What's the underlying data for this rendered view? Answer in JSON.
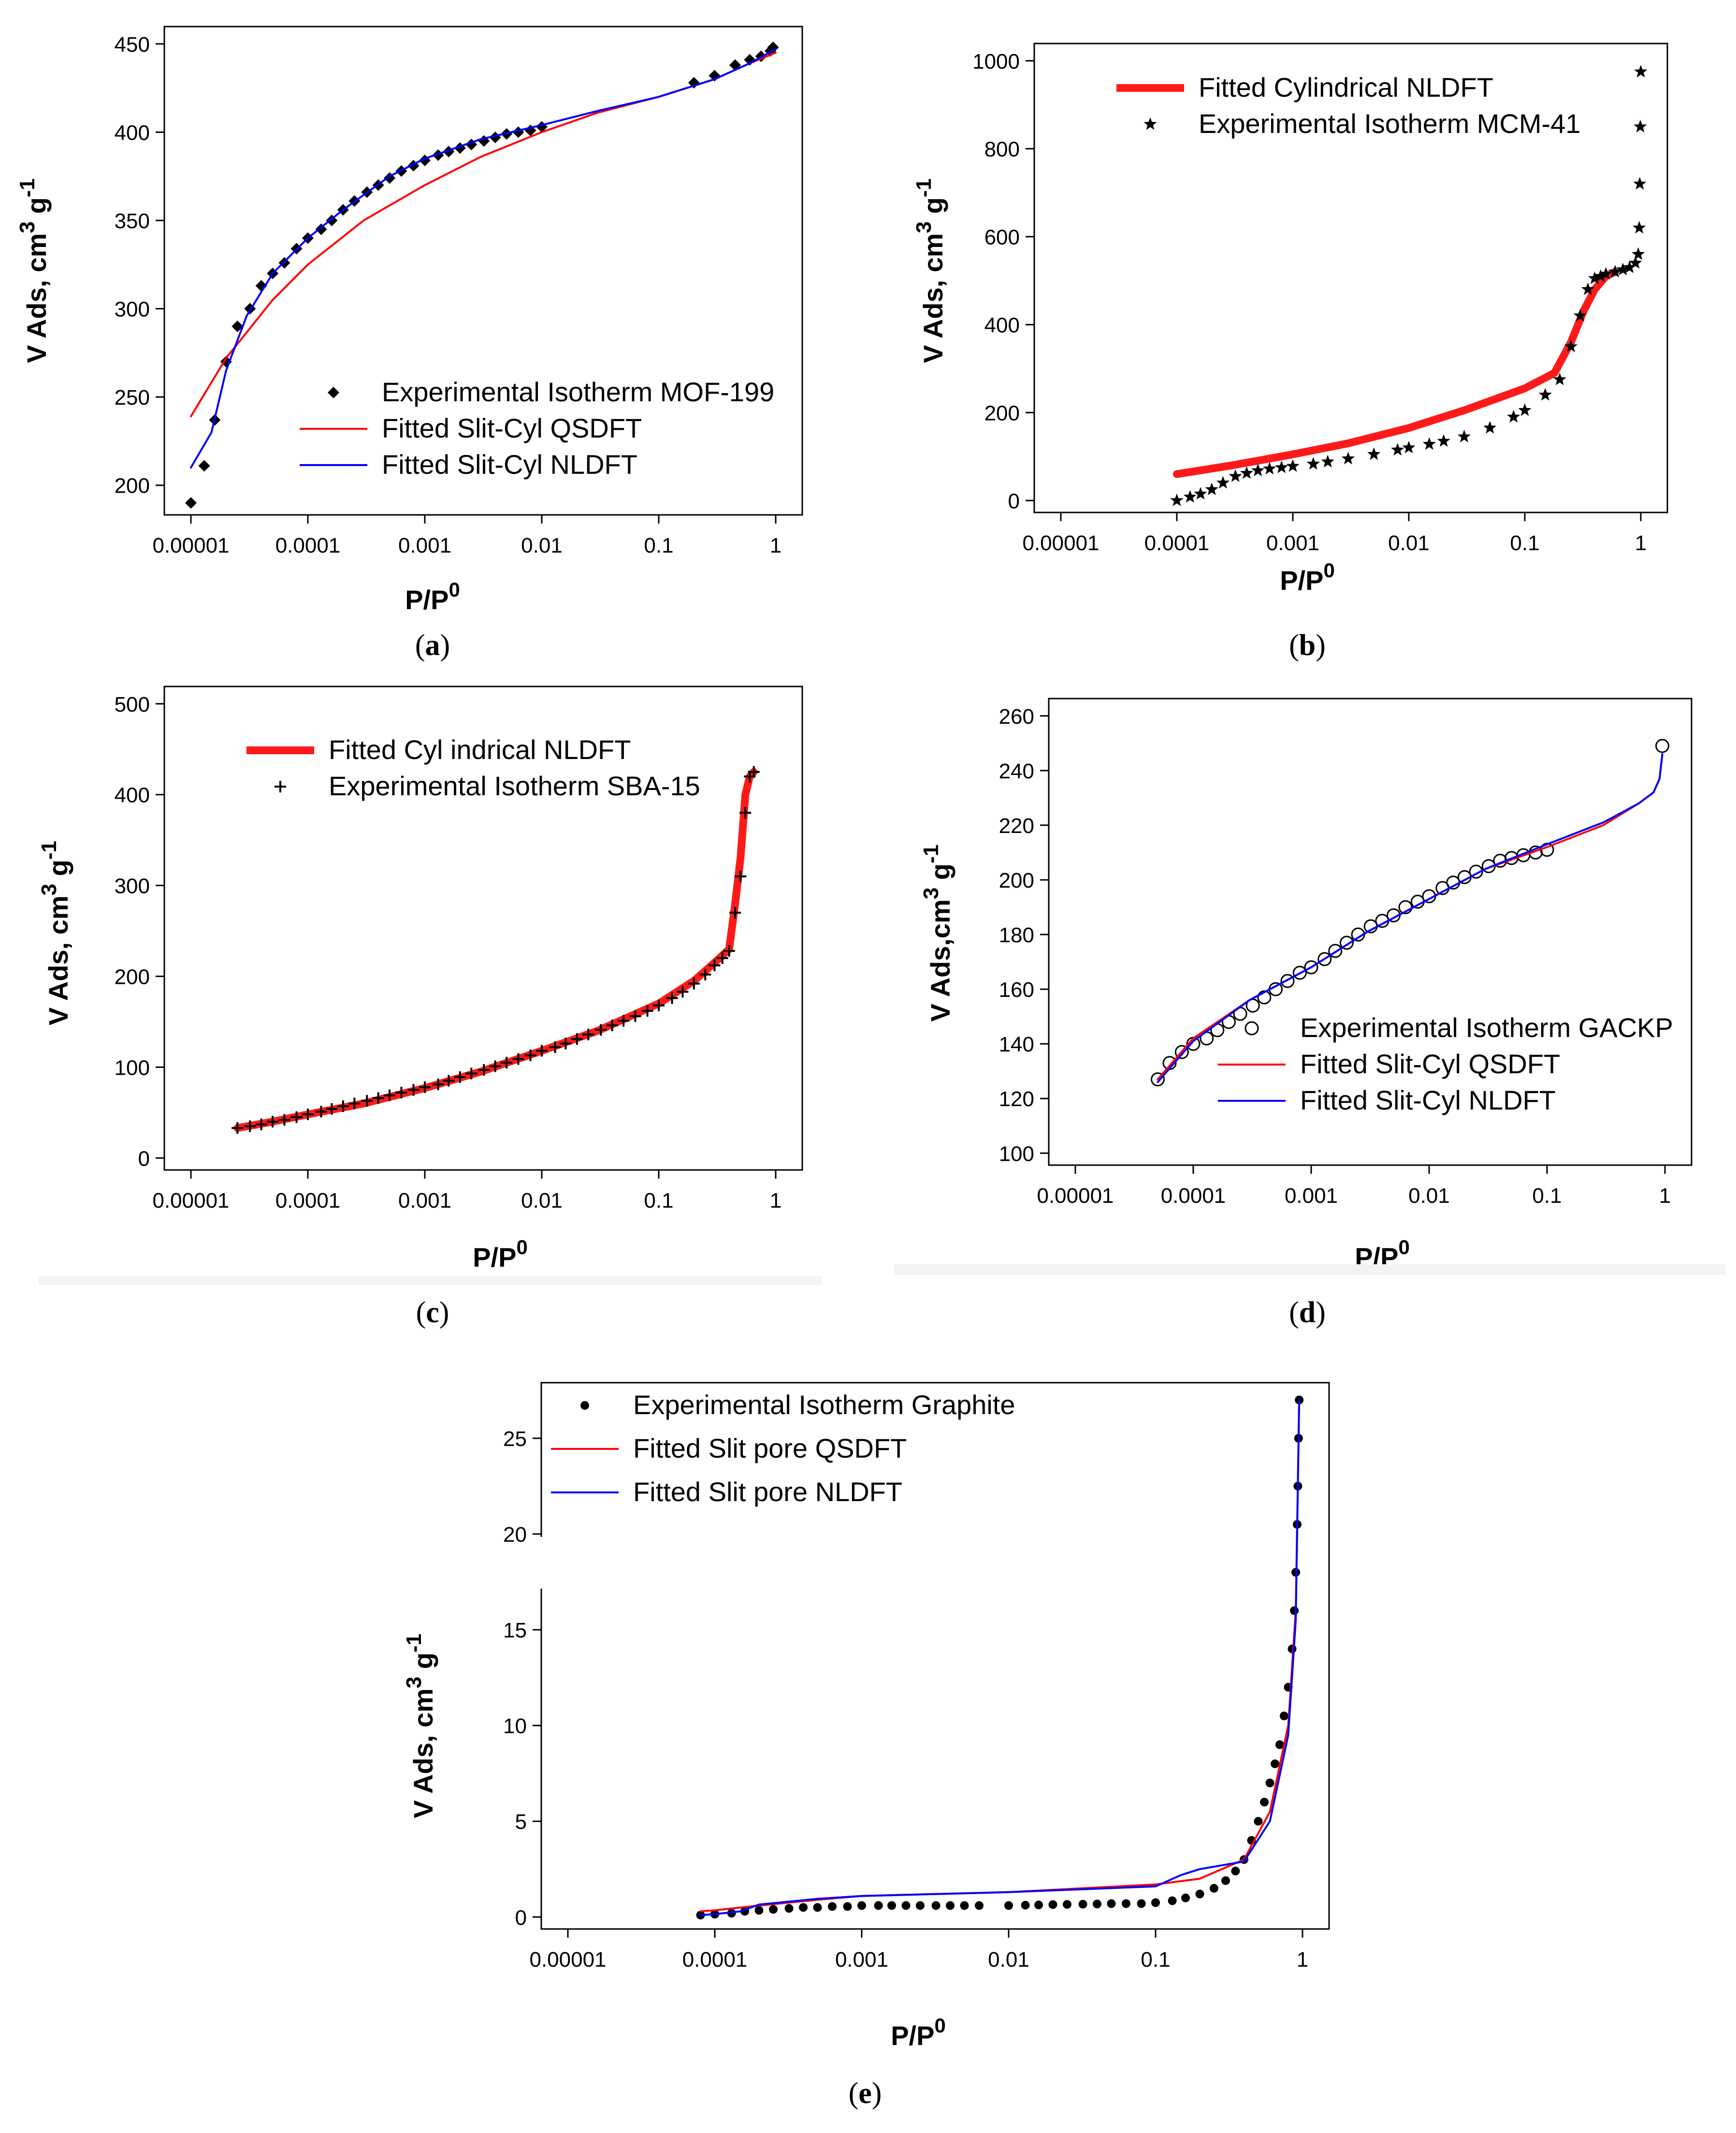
{
  "chart_data": [
    {
      "id": "a",
      "type": "scatter",
      "caption": "a",
      "xlabel": "P/P",
      "xlabel_sup": "0",
      "ylabel": "V Ads, cm",
      "ylabel_sup1": "3",
      "ylabel_mid": " g",
      "ylabel_sup2": "-1",
      "xscale": "log",
      "xlim": [
        1e-05,
        1
      ],
      "ylim": [
        190,
        450
      ],
      "xticks": [
        1e-05,
        0.0001,
        0.001,
        0.01,
        0.1,
        1
      ],
      "xtick_labels": [
        "0.00001",
        "0.0001",
        "0.001",
        "0.01",
        "0.1",
        "1"
      ],
      "yticks": [
        200,
        250,
        300,
        350,
        400,
        450
      ],
      "legend_position": "bottom-right",
      "series": [
        {
          "name": "Experimental Isotherm MOF-199",
          "kind": "marker",
          "marker": "diamond",
          "color": "#000000",
          "x": [
            1e-05,
            1.3e-05,
            1.6e-05,
            2e-05,
            2.5e-05,
            3.2e-05,
            4e-05,
            5e-05,
            6.3e-05,
            8e-05,
            0.0001,
            0.00013,
            0.00016,
            0.0002,
            0.00025,
            0.00032,
            0.0004,
            0.0005,
            0.00063,
            0.0008,
            0.001,
            0.0013,
            0.0016,
            0.002,
            0.0025,
            0.0032,
            0.004,
            0.005,
            0.0063,
            0.008,
            0.01,
            0.2,
            0.3,
            0.45,
            0.6,
            0.75,
            0.9,
            0.95
          ],
          "y": [
            190,
            211,
            237,
            270,
            290,
            300,
            313,
            320,
            326,
            334,
            340,
            345,
            350,
            356,
            361,
            366,
            370,
            374,
            378,
            381,
            384,
            387,
            389,
            391,
            393,
            395,
            397,
            399,
            400,
            401,
            403,
            428,
            432,
            438,
            441,
            443,
            446,
            448
          ]
        },
        {
          "name": "Fitted Slit-Cyl QSDFT",
          "kind": "line",
          "color": "#ff0000",
          "x": [
            1e-05,
            2e-05,
            5e-05,
            0.0001,
            0.0003,
            0.001,
            0.003,
            0.01,
            0.03,
            0.1,
            0.3,
            0.6,
            1
          ],
          "y": [
            239,
            272,
            305,
            325,
            350,
            370,
            386,
            400,
            411,
            420,
            430,
            439,
            445
          ]
        },
        {
          "name": "Fitted Slit-Cyl NLDFT",
          "kind": "line",
          "color": "#0000ff",
          "x": [
            1e-05,
            1.5e-05,
            2e-05,
            3e-05,
            5e-05,
            0.0001,
            0.0002,
            0.0005,
            0.001,
            0.003,
            0.01,
            0.03,
            0.1,
            0.3,
            0.6,
            1
          ],
          "y": [
            210,
            230,
            265,
            296,
            320,
            340,
            356,
            375,
            385,
            396,
            404,
            412,
            420,
            430,
            439,
            447
          ]
        }
      ]
    },
    {
      "id": "b",
      "type": "scatter",
      "caption": "b",
      "xlabel": "P/P",
      "xlabel_sup": "0",
      "ylabel": "V Ads, cm",
      "ylabel_sup1": "3",
      "ylabel_mid": " g",
      "ylabel_sup2": "-1",
      "xscale": "log",
      "xlim": [
        1e-05,
        1
      ],
      "ylim": [
        0,
        1000
      ],
      "xticks": [
        1e-05,
        0.0001,
        0.001,
        0.01,
        0.1,
        1
      ],
      "xtick_labels": [
        "0.00001",
        "0.0001",
        "0.001",
        "0.01",
        "0.1",
        "1"
      ],
      "yticks": [
        0,
        200,
        400,
        600,
        800,
        1000
      ],
      "legend_position": "top-left",
      "series": [
        {
          "name": "Fitted Cylindrical NLDFT",
          "kind": "line",
          "color": "#ff1a1a",
          "x": [
            0.0001,
            0.0003,
            0.001,
            0.003,
            0.01,
            0.03,
            0.1,
            0.18,
            0.25,
            0.32,
            0.4,
            0.5,
            0.6
          ],
          "y": [
            60,
            80,
            105,
            130,
            165,
            205,
            255,
            290,
            360,
            430,
            480,
            510,
            520
          ]
        },
        {
          "name": "Experimental Isotherm MCM-41",
          "kind": "marker",
          "marker": "star",
          "color": "#000000",
          "x": [
            0.0001,
            0.00013,
            0.00016,
            0.0002,
            0.00025,
            0.00032,
            0.0004,
            0.0005,
            0.00063,
            0.0008,
            0.001,
            0.0015,
            0.002,
            0.003,
            0.005,
            0.008,
            0.01,
            0.015,
            0.02,
            0.03,
            0.05,
            0.08,
            0.1,
            0.15,
            0.2,
            0.25,
            0.3,
            0.35,
            0.4,
            0.45,
            0.5,
            0.6,
            0.7,
            0.8,
            0.9,
            0.95,
            0.97,
            0.98,
            0.99,
            1.0
          ],
          "y": [
            0,
            8,
            15,
            25,
            40,
            55,
            62,
            68,
            72,
            75,
            78,
            83,
            88,
            95,
            105,
            115,
            120,
            128,
            135,
            145,
            165,
            190,
            205,
            240,
            275,
            350,
            420,
            480,
            505,
            510,
            515,
            520,
            525,
            530,
            540,
            560,
            620,
            720,
            850,
            975
          ]
        }
      ]
    },
    {
      "id": "c",
      "type": "scatter",
      "caption": "c",
      "xlabel": "P/P",
      "xlabel_sup": "0",
      "ylabel": "V Ads, cm",
      "ylabel_sup1": "3",
      "ylabel_mid": " g",
      "ylabel_sup2": "-1",
      "xscale": "log",
      "xlim": [
        1e-05,
        1
      ],
      "ylim": [
        0,
        500
      ],
      "xticks": [
        1e-05,
        0.0001,
        0.001,
        0.01,
        0.1,
        1
      ],
      "xtick_labels": [
        "0.00001",
        "0.0001",
        "0.001",
        "0.01",
        "0.1",
        "1"
      ],
      "yticks": [
        0,
        100,
        200,
        300,
        400,
        500
      ],
      "legend_position": "top-left",
      "series": [
        {
          "name": "Fitted Cyl indrical NLDFT",
          "kind": "line",
          "color": "#ff1a1a",
          "x": [
            2.5e-05,
            5e-05,
            0.0001,
            0.0003,
            0.001,
            0.003,
            0.01,
            0.03,
            0.1,
            0.2,
            0.3,
            0.4,
            0.45,
            0.5,
            0.55,
            0.6,
            0.65
          ],
          "y": [
            33,
            40,
            48,
            60,
            77,
            95,
            118,
            140,
            170,
            195,
            215,
            230,
            280,
            330,
            400,
            420,
            425
          ]
        },
        {
          "name": "Experimental Isotherm SBA-15",
          "kind": "marker",
          "marker": "plus",
          "color": "#000000",
          "x": [
            2.5e-05,
            3.2e-05,
            4e-05,
            5e-05,
            6.3e-05,
            8e-05,
            0.0001,
            0.00013,
            0.00016,
            0.0002,
            0.00025,
            0.00032,
            0.0004,
            0.0005,
            0.00063,
            0.0008,
            0.001,
            0.0013,
            0.0016,
            0.002,
            0.0025,
            0.0032,
            0.004,
            0.005,
            0.0063,
            0.008,
            0.01,
            0.013,
            0.016,
            0.02,
            0.025,
            0.032,
            0.04,
            0.05,
            0.063,
            0.08,
            0.1,
            0.13,
            0.16,
            0.2,
            0.25,
            0.3,
            0.35,
            0.4,
            0.45,
            0.5,
            0.55,
            0.6,
            0.65
          ],
          "y": [
            33,
            35,
            37,
            40,
            42,
            45,
            48,
            51,
            54,
            57,
            60,
            63,
            66,
            69,
            72,
            75,
            78,
            81,
            85,
            89,
            93,
            97,
            101,
            105,
            109,
            113,
            118,
            122,
            126,
            131,
            136,
            141,
            146,
            151,
            156,
            162,
            168,
            176,
            183,
            192,
            202,
            212,
            220,
            228,
            270,
            310,
            380,
            420,
            425
          ]
        }
      ]
    },
    {
      "id": "d",
      "type": "scatter",
      "caption": "d",
      "xlabel": "P/P",
      "xlabel_sup": "0",
      "ylabel": "V Ads,cm",
      "ylabel_sup1": "3",
      "ylabel_mid": " g",
      "ylabel_sup2": "-1",
      "xscale": "log",
      "xlim": [
        1e-05,
        1
      ],
      "ylim": [
        100,
        260
      ],
      "xticks": [
        1e-05,
        0.0001,
        0.001,
        0.01,
        0.1,
        1
      ],
      "xtick_labels": [
        "0.00001",
        "0.0001",
        "0.001",
        "0.01",
        "0.1",
        "1"
      ],
      "yticks": [
        100,
        120,
        140,
        160,
        180,
        200,
        220,
        240,
        260
      ],
      "legend_position": "bottom-right",
      "series": [
        {
          "name": "Experimental Isotherm GACKP",
          "kind": "marker",
          "marker": "open-circle",
          "color": "#000000",
          "x": [
            5e-05,
            6.3e-05,
            8e-05,
            0.0001,
            0.00013,
            0.00016,
            0.0002,
            0.00025,
            0.00032,
            0.0004,
            0.0005,
            0.00063,
            0.0008,
            0.001,
            0.0013,
            0.0016,
            0.002,
            0.0025,
            0.0032,
            0.004,
            0.005,
            0.0063,
            0.008,
            0.01,
            0.013,
            0.016,
            0.02,
            0.025,
            0.032,
            0.04,
            0.05,
            0.063,
            0.08,
            0.1,
            0.95
          ],
          "y": [
            127,
            133,
            137,
            140,
            142,
            145,
            148,
            151,
            154,
            157,
            160,
            163,
            166,
            168,
            171,
            174,
            177,
            180,
            183,
            185,
            187,
            190,
            192,
            194,
            197,
            199,
            201,
            203,
            205,
            207,
            208,
            209,
            210,
            211,
            249
          ]
        },
        {
          "name": "Fitted Slit-Cyl QSDFT",
          "kind": "line",
          "color": "#ff0000",
          "x": [
            5e-05,
            0.0001,
            0.0003,
            0.001,
            0.003,
            0.01,
            0.03,
            0.1,
            0.3,
            0.6,
            0.8,
            0.9,
            0.95
          ],
          "y": [
            127,
            142,
            156,
            168,
            181,
            193,
            204,
            212,
            220,
            228,
            232,
            237,
            246
          ]
        },
        {
          "name": "Fitted Slit-Cyl NLDFT",
          "kind": "line",
          "color": "#0000ff",
          "x": [
            5e-05,
            0.0001,
            0.0003,
            0.001,
            0.003,
            0.01,
            0.03,
            0.1,
            0.3,
            0.6,
            0.8,
            0.9,
            0.95
          ],
          "y": [
            126,
            141,
            156,
            168,
            181,
            193,
            204,
            213,
            221,
            228,
            232,
            237,
            246
          ]
        }
      ]
    },
    {
      "id": "e",
      "type": "scatter",
      "caption": "e",
      "xlabel": "P/P",
      "xlabel_sup": "0",
      "ylabel": "V Ads, cm",
      "ylabel_sup1": "3",
      "ylabel_mid": " g",
      "ylabel_sup2": "-1",
      "xscale": "log",
      "xlim": [
        1e-05,
        1
      ],
      "ylim": [
        0,
        27
      ],
      "xticks": [
        1e-05,
        0.0001,
        0.001,
        0.01,
        0.1,
        1
      ],
      "xtick_labels": [
        "0.00001",
        "0.0001",
        "0.001",
        "0.01",
        "0.1",
        "1"
      ],
      "yticks": [
        0,
        5,
        10,
        15,
        20,
        25
      ],
      "axis_break": [
        17,
        20
      ],
      "legend_position": "top-left",
      "series": [
        {
          "name": "Experimental Isotherm Graphite",
          "kind": "marker",
          "marker": "dot",
          "color": "#000000",
          "x": [
            8e-05,
            0.0001,
            0.00013,
            0.00016,
            0.0002,
            0.00025,
            0.00032,
            0.0004,
            0.0005,
            0.00063,
            0.0008,
            0.001,
            0.0013,
            0.0016,
            0.002,
            0.0025,
            0.0032,
            0.004,
            0.005,
            0.0063,
            0.01,
            0.013,
            0.016,
            0.02,
            0.025,
            0.032,
            0.04,
            0.05,
            0.063,
            0.08,
            0.1,
            0.13,
            0.16,
            0.2,
            0.25,
            0.3,
            0.35,
            0.4,
            0.45,
            0.5,
            0.55,
            0.6,
            0.65,
            0.7,
            0.75,
            0.8,
            0.85,
            0.88,
            0.9,
            0.92,
            0.93,
            0.94,
            0.95
          ],
          "y": [
            0.1,
            0.15,
            0.2,
            0.3,
            0.35,
            0.4,
            0.45,
            0.5,
            0.5,
            0.55,
            0.55,
            0.6,
            0.6,
            0.6,
            0.6,
            0.6,
            0.6,
            0.6,
            0.6,
            0.6,
            0.6,
            0.62,
            0.63,
            0.65,
            0.66,
            0.67,
            0.68,
            0.7,
            0.7,
            0.7,
            0.75,
            0.85,
            1.0,
            1.2,
            1.5,
            1.9,
            2.4,
            3.0,
            4.0,
            5.0,
            6.0,
            7.0,
            8.0,
            9.0,
            10.5,
            12.0,
            14.0,
            16.0,
            18.0,
            20.5,
            22.5,
            25.0,
            27.0
          ]
        },
        {
          "name": "Fitted Slit pore QSDFT",
          "kind": "line",
          "color": "#ff0000",
          "x": [
            8e-05,
            0.0001,
            0.0002,
            0.0005,
            0.001,
            0.01,
            0.1,
            0.2,
            0.4,
            0.6,
            0.8,
            0.9,
            0.95
          ],
          "y": [
            0.3,
            0.35,
            0.6,
            0.9,
            1.1,
            1.3,
            1.7,
            2.0,
            3.0,
            5.5,
            10.0,
            16.0,
            27.0
          ]
        },
        {
          "name": "Fitted Slit pore NLDFT",
          "kind": "line",
          "color": "#0000ff",
          "x": [
            8e-05,
            0.0001,
            0.00015,
            0.0002,
            0.0005,
            0.001,
            0.01,
            0.1,
            0.15,
            0.2,
            0.4,
            0.6,
            0.8,
            0.9,
            0.95
          ],
          "y": [
            0.1,
            0.15,
            0.3,
            0.65,
            0.95,
            1.1,
            1.3,
            1.6,
            2.2,
            2.5,
            2.9,
            5.0,
            9.5,
            15.5,
            27.0
          ]
        }
      ]
    }
  ]
}
